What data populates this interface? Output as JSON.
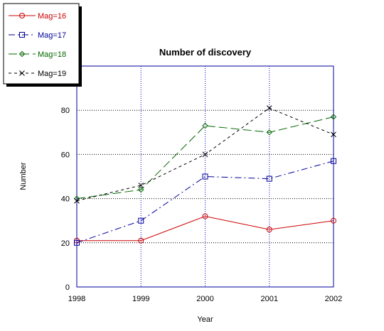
{
  "chart_data": {
    "type": "line",
    "title": "Number of discovery",
    "xlabel": "Year",
    "ylabel": "Number",
    "x": [
      1998,
      1999,
      2000,
      2001,
      2002
    ],
    "xlim": [
      1998,
      2002
    ],
    "ylim": [
      0,
      100
    ],
    "yticks": [
      0,
      20,
      40,
      60,
      80
    ],
    "grid": true,
    "legend_position": "top-left",
    "series": [
      {
        "name": "Mag=16",
        "values": [
          21,
          21,
          32,
          26,
          30
        ],
        "color": "#cc0000",
        "marker": "circle",
        "dash": "solid"
      },
      {
        "name": "Mag=17",
        "values": [
          20,
          30,
          50,
          49,
          57
        ],
        "color": "#000099",
        "marker": "square",
        "dash": "dashdot"
      },
      {
        "name": "Mag=18",
        "values": [
          40,
          44,
          73,
          70,
          77
        ],
        "color": "#006600",
        "marker": "diamond",
        "dash": "longdash"
      },
      {
        "name": "Mag=19",
        "values": [
          39,
          46,
          60,
          81,
          69
        ],
        "color": "#000000",
        "marker": "x",
        "dash": "dash"
      }
    ],
    "axis_color": "#000099",
    "grid_color": "#0000cc",
    "hgrid_color": "#000000"
  }
}
